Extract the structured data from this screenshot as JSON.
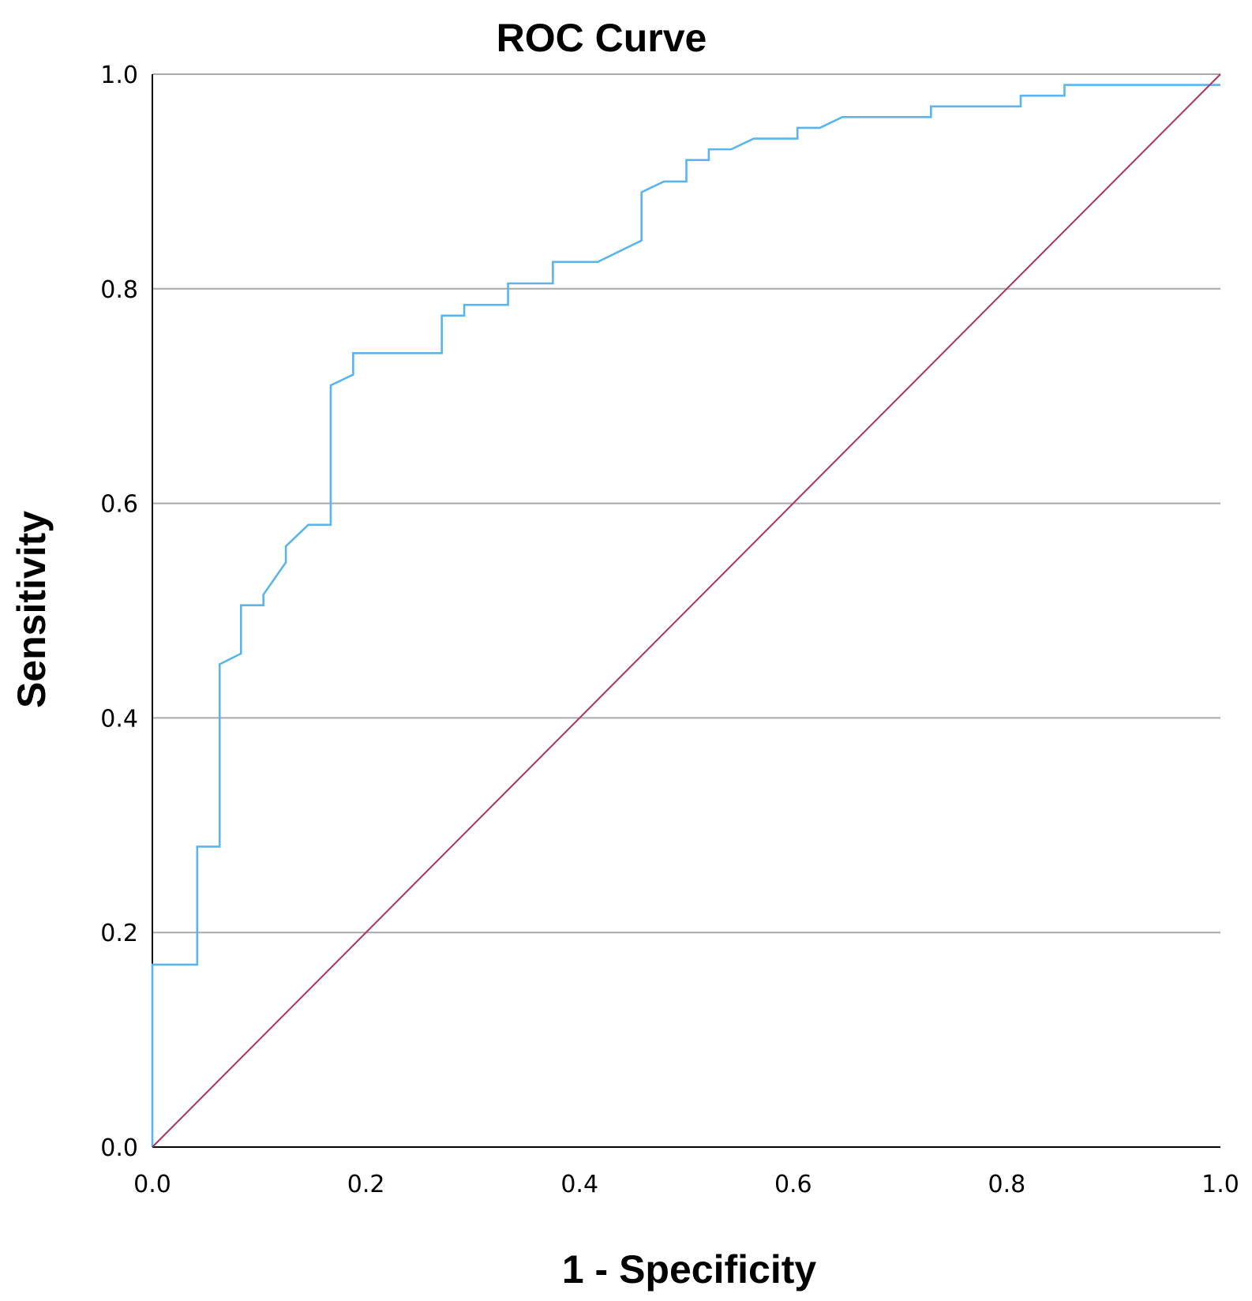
{
  "chart_data": {
    "type": "line",
    "title": "ROC Curve",
    "xlabel": "1 - Specificity",
    "ylabel": "Sensitivity",
    "xlim": [
      0,
      1
    ],
    "ylim": [
      0,
      1
    ],
    "x_ticks": [
      "0.0",
      "0.2",
      "0.4",
      "0.6",
      "0.8",
      "1.0"
    ],
    "y_ticks": [
      "0.0",
      "0.2",
      "0.4",
      "0.6",
      "0.8",
      "1.0"
    ],
    "grid": "horizontal",
    "legend": "none",
    "series": [
      {
        "color": "#5ab4ee",
        "x": [
          0.0,
          0.0,
          0.042,
          0.042,
          0.063,
          0.063,
          0.083,
          0.083,
          0.104,
          0.104,
          0.125,
          0.125,
          0.146,
          0.167,
          0.167,
          0.188,
          0.188,
          0.271,
          0.271,
          0.292,
          0.292,
          0.333,
          0.333,
          0.375,
          0.375,
          0.417,
          0.458,
          0.458,
          0.479,
          0.5,
          0.5,
          0.521,
          0.521,
          0.542,
          0.563,
          0.604,
          0.604,
          0.625,
          0.646,
          0.729,
          0.729,
          0.813,
          0.813,
          0.854,
          0.854,
          1.0
        ],
        "y": [
          0.0,
          0.17,
          0.17,
          0.28,
          0.28,
          0.45,
          0.46,
          0.505,
          0.505,
          0.515,
          0.545,
          0.56,
          0.58,
          0.58,
          0.71,
          0.72,
          0.74,
          0.74,
          0.775,
          0.775,
          0.785,
          0.785,
          0.805,
          0.805,
          0.825,
          0.825,
          0.845,
          0.89,
          0.9,
          0.9,
          0.92,
          0.92,
          0.93,
          0.93,
          0.94,
          0.94,
          0.95,
          0.95,
          0.96,
          0.96,
          0.97,
          0.97,
          0.98,
          0.98,
          0.99,
          0.99
        ]
      },
      {
        "color": "#a8355f",
        "x": [
          0,
          1
        ],
        "y": [
          0,
          1
        ]
      }
    ]
  }
}
